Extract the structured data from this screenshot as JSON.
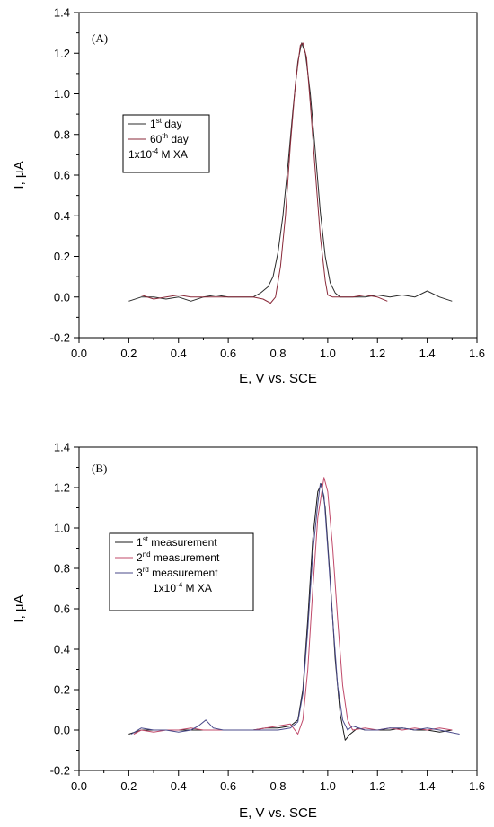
{
  "chart_data": [
    {
      "type": "line",
      "panel_label": "(A)",
      "xlabel": "E, V vs. SCE",
      "ylabel_main": "I, ",
      "ylabel_mu": "μ",
      "ylabel_unit": "A",
      "xlim": [
        0.0,
        1.6
      ],
      "ylim": [
        -0.2,
        1.4
      ],
      "xticks": [
        "0.0",
        "0.2",
        "0.4",
        "0.6",
        "0.8",
        "1.0",
        "1.2",
        "1.4",
        "1.6"
      ],
      "yticks": [
        "-0.2",
        "0.0",
        "0.2",
        "0.4",
        "0.6",
        "0.8",
        "1.0",
        "1.2",
        "1.4"
      ],
      "legend": {
        "entries": [
          {
            "main": "1",
            "sup": "st",
            "rest": " day"
          },
          {
            "main": "60",
            "sup": "th",
            "rest": " day"
          }
        ],
        "note": "1x10",
        "note_sup": "-4",
        "note_rest": " M XA"
      },
      "series": [
        {
          "name": "1st day",
          "color": "#2b2b2b",
          "points": [
            [
              0.2,
              -0.02
            ],
            [
              0.25,
              0.0
            ],
            [
              0.3,
              0.0
            ],
            [
              0.35,
              -0.01
            ],
            [
              0.4,
              0.0
            ],
            [
              0.45,
              -0.02
            ],
            [
              0.5,
              0.0
            ],
            [
              0.55,
              0.01
            ],
            [
              0.6,
              0.0
            ],
            [
              0.65,
              0.0
            ],
            [
              0.7,
              0.0
            ],
            [
              0.73,
              0.02
            ],
            [
              0.76,
              0.05
            ],
            [
              0.78,
              0.1
            ],
            [
              0.8,
              0.22
            ],
            [
              0.82,
              0.4
            ],
            [
              0.84,
              0.65
            ],
            [
              0.86,
              0.92
            ],
            [
              0.88,
              1.16
            ],
            [
              0.895,
              1.25
            ],
            [
              0.91,
              1.2
            ],
            [
              0.93,
              1.0
            ],
            [
              0.95,
              0.72
            ],
            [
              0.97,
              0.42
            ],
            [
              0.99,
              0.2
            ],
            [
              1.01,
              0.07
            ],
            [
              1.03,
              0.02
            ],
            [
              1.05,
              0.0
            ],
            [
              1.1,
              0.0
            ],
            [
              1.15,
              0.0
            ],
            [
              1.2,
              0.01
            ],
            [
              1.25,
              0.0
            ],
            [
              1.3,
              0.01
            ],
            [
              1.35,
              0.0
            ],
            [
              1.4,
              0.03
            ],
            [
              1.45,
              0.0
            ],
            [
              1.5,
              -0.02
            ]
          ]
        },
        {
          "name": "60th day",
          "color": "#8a2a3a",
          "points": [
            [
              0.2,
              0.01
            ],
            [
              0.25,
              0.01
            ],
            [
              0.3,
              -0.01
            ],
            [
              0.35,
              0.0
            ],
            [
              0.4,
              0.01
            ],
            [
              0.45,
              0.0
            ],
            [
              0.5,
              0.0
            ],
            [
              0.55,
              0.0
            ],
            [
              0.6,
              0.0
            ],
            [
              0.65,
              0.0
            ],
            [
              0.7,
              0.0
            ],
            [
              0.74,
              -0.01
            ],
            [
              0.77,
              -0.03
            ],
            [
              0.79,
              0.0
            ],
            [
              0.81,
              0.15
            ],
            [
              0.83,
              0.4
            ],
            [
              0.85,
              0.75
            ],
            [
              0.87,
              1.05
            ],
            [
              0.89,
              1.24
            ],
            [
              0.9,
              1.25
            ],
            [
              0.915,
              1.18
            ],
            [
              0.93,
              0.95
            ],
            [
              0.95,
              0.62
            ],
            [
              0.97,
              0.3
            ],
            [
              0.99,
              0.08
            ],
            [
              1.0,
              0.01
            ],
            [
              1.02,
              0.0
            ],
            [
              1.05,
              0.0
            ],
            [
              1.1,
              0.0
            ],
            [
              1.15,
              0.01
            ],
            [
              1.2,
              0.0
            ],
            [
              1.24,
              -0.02
            ]
          ]
        }
      ]
    },
    {
      "type": "line",
      "panel_label": "(B)",
      "xlabel": "E, V vs. SCE",
      "ylabel_main": "I, ",
      "ylabel_mu": "μ",
      "ylabel_unit": "A",
      "xlim": [
        0.0,
        1.6
      ],
      "ylim": [
        -0.2,
        1.4
      ],
      "xticks": [
        "0.0",
        "0.2",
        "0.4",
        "0.6",
        "0.8",
        "1.0",
        "1.2",
        "1.4",
        "1.6"
      ],
      "yticks": [
        "-0.2",
        "0.0",
        "0.2",
        "0.4",
        "0.6",
        "0.8",
        "1.0",
        "1.2",
        "1.4"
      ],
      "legend": {
        "entries": [
          {
            "main": "1",
            "sup": "st",
            "rest": " measurement"
          },
          {
            "main": "2",
            "sup": "nd",
            "rest": " measurement"
          },
          {
            "main": "3",
            "sup": "rd",
            "rest": " measurement"
          }
        ],
        "note": "1x10",
        "note_sup": "-4",
        "note_rest": " M XA"
      },
      "series": [
        {
          "name": "1st measurement",
          "color": "#1a1a1a",
          "points": [
            [
              0.2,
              -0.02
            ],
            [
              0.25,
              0.0
            ],
            [
              0.3,
              0.0
            ],
            [
              0.35,
              0.0
            ],
            [
              0.4,
              0.0
            ],
            [
              0.45,
              0.0
            ],
            [
              0.5,
              0.0
            ],
            [
              0.55,
              0.0
            ],
            [
              0.6,
              0.0
            ],
            [
              0.65,
              0.0
            ],
            [
              0.7,
              0.0
            ],
            [
              0.75,
              0.01
            ],
            [
              0.8,
              0.01
            ],
            [
              0.85,
              0.02
            ],
            [
              0.88,
              0.05
            ],
            [
              0.9,
              0.2
            ],
            [
              0.92,
              0.55
            ],
            [
              0.94,
              0.95
            ],
            [
              0.96,
              1.18
            ],
            [
              0.975,
              1.22
            ],
            [
              0.99,
              1.1
            ],
            [
              1.01,
              0.75
            ],
            [
              1.03,
              0.35
            ],
            [
              1.05,
              0.08
            ],
            [
              1.07,
              -0.05
            ],
            [
              1.09,
              -0.02
            ],
            [
              1.12,
              0.01
            ],
            [
              1.15,
              0.0
            ],
            [
              1.2,
              0.0
            ],
            [
              1.25,
              0.0
            ],
            [
              1.3,
              0.01
            ],
            [
              1.35,
              0.0
            ],
            [
              1.4,
              0.0
            ],
            [
              1.45,
              -0.01
            ],
            [
              1.5,
              0.0
            ]
          ]
        },
        {
          "name": "2nd measurement",
          "color": "#c04a6a",
          "points": [
            [
              0.22,
              -0.02
            ],
            [
              0.25,
              0.0
            ],
            [
              0.3,
              -0.01
            ],
            [
              0.35,
              0.0
            ],
            [
              0.4,
              0.0
            ],
            [
              0.45,
              0.01
            ],
            [
              0.5,
              0.0
            ],
            [
              0.55,
              0.0
            ],
            [
              0.6,
              0.0
            ],
            [
              0.65,
              0.0
            ],
            [
              0.7,
              0.0
            ],
            [
              0.75,
              0.01
            ],
            [
              0.8,
              0.02
            ],
            [
              0.85,
              0.03
            ],
            [
              0.88,
              -0.02
            ],
            [
              0.9,
              0.05
            ],
            [
              0.92,
              0.3
            ],
            [
              0.94,
              0.7
            ],
            [
              0.96,
              1.05
            ],
            [
              0.985,
              1.25
            ],
            [
              1.0,
              1.18
            ],
            [
              1.02,
              0.9
            ],
            [
              1.04,
              0.55
            ],
            [
              1.06,
              0.22
            ],
            [
              1.08,
              0.05
            ],
            [
              1.1,
              0.0
            ],
            [
              1.15,
              0.01
            ],
            [
              1.2,
              0.0
            ],
            [
              1.25,
              0.01
            ],
            [
              1.3,
              0.0
            ],
            [
              1.35,
              0.01
            ],
            [
              1.4,
              0.0
            ],
            [
              1.45,
              0.01
            ],
            [
              1.5,
              0.0
            ]
          ]
        },
        {
          "name": "3rd measurement",
          "color": "#4a4a8a",
          "points": [
            [
              0.21,
              -0.02
            ],
            [
              0.25,
              0.01
            ],
            [
              0.3,
              0.0
            ],
            [
              0.35,
              0.0
            ],
            [
              0.4,
              -0.01
            ],
            [
              0.45,
              0.0
            ],
            [
              0.48,
              0.02
            ],
            [
              0.51,
              0.05
            ],
            [
              0.54,
              0.01
            ],
            [
              0.58,
              0.0
            ],
            [
              0.62,
              0.0
            ],
            [
              0.66,
              0.0
            ],
            [
              0.7,
              0.0
            ],
            [
              0.75,
              0.0
            ],
            [
              0.8,
              0.0
            ],
            [
              0.85,
              0.01
            ],
            [
              0.88,
              0.04
            ],
            [
              0.9,
              0.18
            ],
            [
              0.92,
              0.5
            ],
            [
              0.94,
              0.88
            ],
            [
              0.96,
              1.12
            ],
            [
              0.97,
              1.22
            ],
            [
              0.985,
              1.16
            ],
            [
              1.0,
              0.9
            ],
            [
              1.02,
              0.55
            ],
            [
              1.04,
              0.22
            ],
            [
              1.06,
              0.05
            ],
            [
              1.08,
              0.0
            ],
            [
              1.1,
              0.02
            ],
            [
              1.15,
              0.0
            ],
            [
              1.2,
              0.0
            ],
            [
              1.25,
              0.01
            ],
            [
              1.3,
              0.01
            ],
            [
              1.35,
              0.0
            ],
            [
              1.4,
              0.01
            ],
            [
              1.45,
              0.0
            ],
            [
              1.53,
              -0.02
            ]
          ]
        }
      ]
    }
  ]
}
